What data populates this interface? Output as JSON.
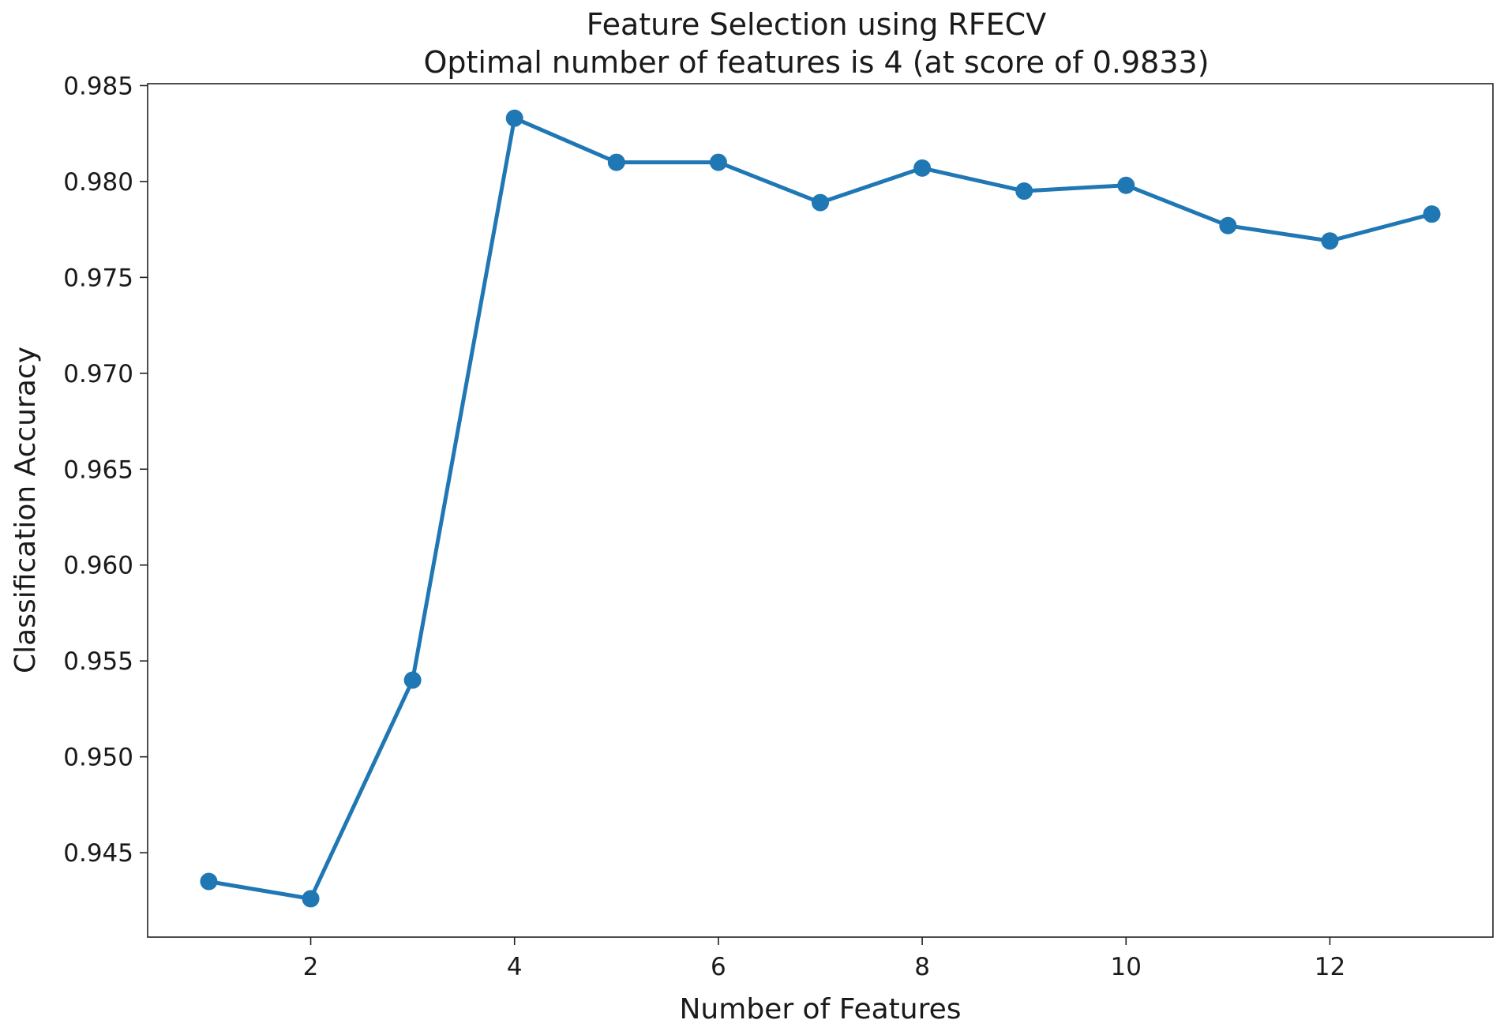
{
  "chart_data": {
    "type": "line",
    "title": "Feature Selection using RFECV",
    "subtitle": "Optimal number of features is 4 (at score of 0.9833)",
    "xlabel": "Number of Features",
    "ylabel": "Classification Accuracy",
    "xlim": [
      0.4,
      13.6
    ],
    "ylim": [
      0.9406,
      0.9851
    ],
    "xticks": [
      2,
      4,
      6,
      8,
      10,
      12
    ],
    "xtick_labels": [
      "2",
      "4",
      "6",
      "8",
      "10",
      "12"
    ],
    "yticks": [
      0.945,
      0.95,
      0.955,
      0.96,
      0.965,
      0.97,
      0.975,
      0.98,
      0.985
    ],
    "ytick_labels": [
      "0.945",
      "0.950",
      "0.955",
      "0.960",
      "0.965",
      "0.970",
      "0.975",
      "0.980",
      "0.985"
    ],
    "grid": false,
    "series": [
      {
        "color": "#1f77b4",
        "marker": "circle",
        "x": [
          1,
          2,
          3,
          4,
          5,
          6,
          7,
          8,
          9,
          10,
          11,
          12,
          13
        ],
        "y": [
          0.9435,
          0.9426,
          0.954,
          0.9833,
          0.981,
          0.981,
          0.9789,
          0.9807,
          0.9795,
          0.9798,
          0.9777,
          0.9769,
          0.9783
        ]
      }
    ]
  }
}
